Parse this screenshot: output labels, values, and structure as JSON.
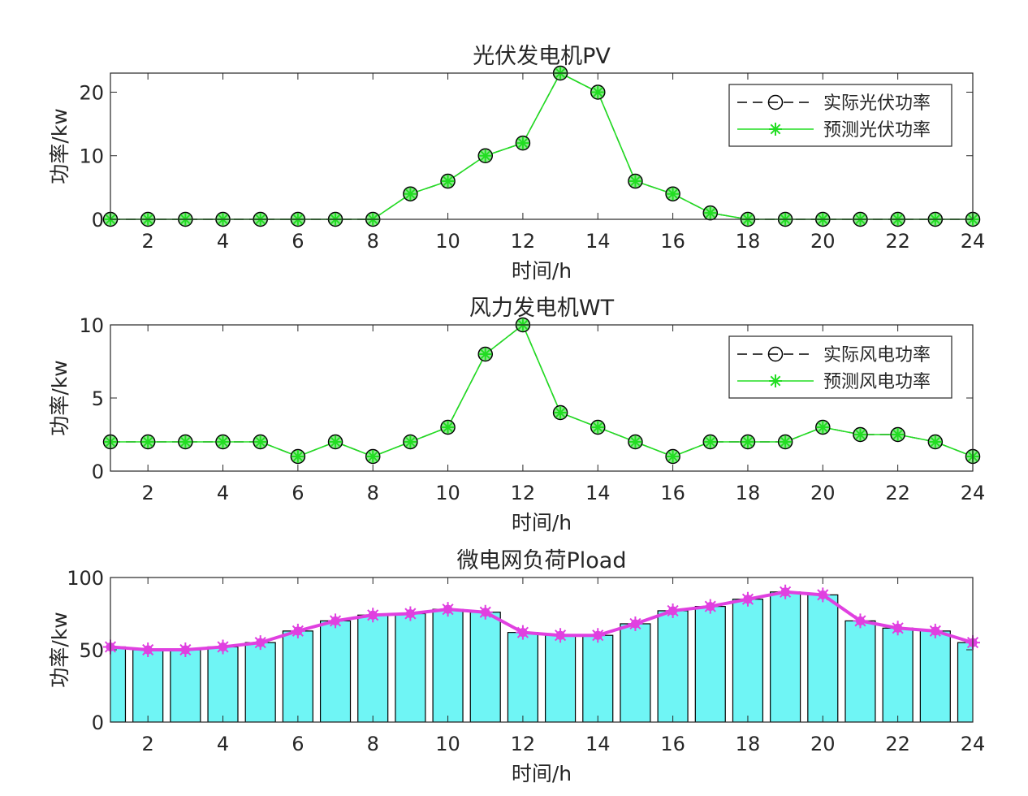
{
  "chart_data": [
    {
      "type": "line",
      "title": "光伏发电机PV",
      "xlabel": "时间/h",
      "ylabel": "功率/kw",
      "xlim": [
        1,
        24
      ],
      "ylim": [
        0,
        23
      ],
      "xticks": [
        2,
        4,
        6,
        8,
        10,
        12,
        14,
        16,
        18,
        20,
        22,
        24
      ],
      "yticks": [
        0,
        10,
        20
      ],
      "legend_position": "top-right",
      "x": [
        1,
        2,
        3,
        4,
        5,
        6,
        7,
        8,
        9,
        10,
        11,
        12,
        13,
        14,
        15,
        16,
        17,
        18,
        19,
        20,
        21,
        22,
        23,
        24
      ],
      "series": [
        {
          "name": "实际光伏功率",
          "style": "dashed-circle",
          "color": "#000000",
          "values": [
            0,
            0,
            0,
            0,
            0,
            0,
            0,
            0,
            4,
            6,
            10,
            12,
            23,
            20,
            6,
            4,
            1,
            0,
            0,
            0,
            0,
            0,
            0,
            0
          ]
        },
        {
          "name": "预测光伏功率",
          "style": "solid-star",
          "color": "#22dd22",
          "values": [
            0,
            0,
            0,
            0,
            0,
            0,
            0,
            0,
            4,
            6,
            10,
            12,
            23,
            20,
            6,
            4,
            1,
            0,
            0,
            0,
            0,
            0,
            0,
            0
          ]
        }
      ]
    },
    {
      "type": "line",
      "title": "风力发电机WT",
      "xlabel": "时间/h",
      "ylabel": "功率/kw",
      "xlim": [
        1,
        24
      ],
      "ylim": [
        0,
        10
      ],
      "xticks": [
        2,
        4,
        6,
        8,
        10,
        12,
        14,
        16,
        18,
        20,
        22,
        24
      ],
      "yticks": [
        0,
        5,
        10
      ],
      "legend_position": "top-right",
      "x": [
        1,
        2,
        3,
        4,
        5,
        6,
        7,
        8,
        9,
        10,
        11,
        12,
        13,
        14,
        15,
        16,
        17,
        18,
        19,
        20,
        21,
        22,
        23,
        24
      ],
      "series": [
        {
          "name": "实际风电功率",
          "style": "dashed-circle",
          "color": "#000000",
          "values": [
            2,
            2,
            2,
            2,
            2,
            1,
            2,
            1,
            2,
            3,
            8,
            10,
            4,
            3,
            2,
            1,
            2,
            2,
            2,
            3,
            2.5,
            2.5,
            2,
            1
          ]
        },
        {
          "name": "预测风电功率",
          "style": "solid-star",
          "color": "#22dd22",
          "values": [
            2,
            2,
            2,
            2,
            2,
            1,
            2,
            1,
            2,
            3,
            8,
            10,
            4,
            3,
            2,
            1,
            2,
            2,
            2,
            3,
            2.5,
            2.5,
            2,
            1
          ]
        }
      ]
    },
    {
      "type": "bar",
      "title": "微电网负荷Pload",
      "xlabel": "时间/h",
      "ylabel": "功率/kw",
      "xlim": [
        1,
        24
      ],
      "ylim": [
        0,
        100
      ],
      "xticks": [
        2,
        4,
        6,
        8,
        10,
        12,
        14,
        16,
        18,
        20,
        22,
        24
      ],
      "yticks": [
        0,
        50,
        100
      ],
      "bar_color": "#6ff5f5",
      "line_color": "#e040e0",
      "x": [
        1,
        2,
        3,
        4,
        5,
        6,
        7,
        8,
        9,
        10,
        11,
        12,
        13,
        14,
        15,
        16,
        17,
        18,
        19,
        20,
        21,
        22,
        23,
        24
      ],
      "values": [
        52,
        50,
        50,
        52,
        55,
        63,
        70,
        74,
        75,
        78,
        76,
        62,
        60,
        60,
        68,
        77,
        80,
        85,
        90,
        88,
        70,
        65,
        63,
        55
      ]
    }
  ]
}
